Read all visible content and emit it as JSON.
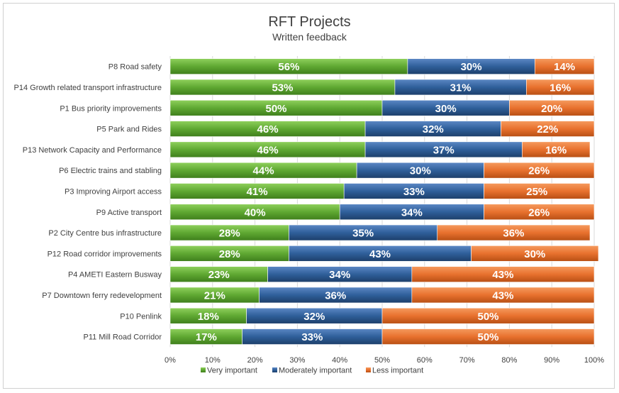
{
  "chart_data": {
    "type": "bar",
    "orientation": "horizontal",
    "stacked": "percent",
    "title": "RFT Projects",
    "subtitle": "Written feedback",
    "categories": [
      "P8 Road safety",
      "P14 Growth related transport infrastructure",
      "P1 Bus priority improvements",
      "P5 Park and Rides",
      "P13 Network Capacity and Performance",
      "P6 Electric trains and stabling",
      "P3 Improving Airport access",
      "P9 Active transport",
      "P2 City Centre bus infrastructure",
      "P12 Road corridor improvements",
      "P4 AMETI Eastern Busway",
      "P7 Downtown ferry redevelopment",
      "P10 Penlink",
      "P11 Mill Road Corridor"
    ],
    "series": [
      {
        "name": "Very important",
        "color": "#5fa832",
        "values": [
          56,
          53,
          50,
          46,
          46,
          44,
          41,
          40,
          28,
          28,
          23,
          21,
          18,
          17
        ]
      },
      {
        "name": "Moderately important",
        "color": "#2f5f9a",
        "values": [
          30,
          31,
          30,
          32,
          37,
          30,
          33,
          34,
          35,
          43,
          34,
          36,
          32,
          33
        ]
      },
      {
        "name": "Less important",
        "color": "#e8712e",
        "values": [
          14,
          16,
          20,
          22,
          16,
          26,
          25,
          26,
          36,
          30,
          43,
          43,
          50,
          50
        ]
      }
    ],
    "xlim": [
      0,
      100
    ],
    "xticks": [
      "0%",
      "10%",
      "20%",
      "30%",
      "40%",
      "50%",
      "60%",
      "70%",
      "80%",
      "90%",
      "100%"
    ],
    "legend": "bottom",
    "grid": true
  }
}
